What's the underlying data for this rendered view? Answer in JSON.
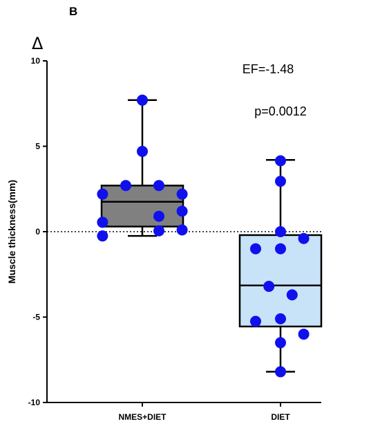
{
  "panel_label": "B",
  "delta_symbol": "Δ",
  "chart_data": {
    "type": "box",
    "ylabel": "Muscle thickness(mm)",
    "ylim": [
      -10,
      10
    ],
    "yticks": [
      10,
      5,
      0,
      -5,
      -10
    ],
    "ytick_labels": [
      "10",
      "5",
      "0",
      "-5",
      "-10"
    ],
    "zero_line": "dotted",
    "grid": false,
    "categories": [
      "NMES+DIET",
      "DIET"
    ],
    "series": [
      {
        "category": "NMES+DIET",
        "box_color": "#808080",
        "point_color": "#1010ee",
        "min": -0.25,
        "q1": 0.3,
        "median": 1.75,
        "q3": 2.7,
        "max": 7.7,
        "points": [
          {
            "offset": 0,
            "y": 7.7
          },
          {
            "offset": 0,
            "y": 4.7
          },
          {
            "offset": -0.5,
            "y": 2.7
          },
          {
            "offset": 0.5,
            "y": 2.7
          },
          {
            "offset": -1.2,
            "y": 2.2
          },
          {
            "offset": 1.2,
            "y": 2.2
          },
          {
            "offset": 1.2,
            "y": 1.2
          },
          {
            "offset": 0.5,
            "y": 0.9
          },
          {
            "offset": -1.2,
            "y": 0.55
          },
          {
            "offset": 0.5,
            "y": 0.05
          },
          {
            "offset": 1.2,
            "y": 0.1
          },
          {
            "offset": -1.2,
            "y": -0.25
          }
        ]
      },
      {
        "category": "DIET",
        "box_color": "#c8e2f8",
        "point_color": "#1010ee",
        "min": -8.2,
        "q1": -5.55,
        "median": -3.15,
        "q3": -0.2,
        "max": 4.2,
        "points": [
          {
            "offset": 0,
            "y": 4.15
          },
          {
            "offset": 0,
            "y": 2.95
          },
          {
            "offset": 0,
            "y": 0.0
          },
          {
            "offset": 0.7,
            "y": -0.4
          },
          {
            "offset": -0.75,
            "y": -1.0
          },
          {
            "offset": 0,
            "y": -1.0
          },
          {
            "offset": -0.35,
            "y": -3.2
          },
          {
            "offset": 0.35,
            "y": -3.7
          },
          {
            "offset": -0.75,
            "y": -5.25
          },
          {
            "offset": 0,
            "y": -5.1
          },
          {
            "offset": 0.7,
            "y": -6.0
          },
          {
            "offset": 0,
            "y": -6.5
          },
          {
            "offset": 0,
            "y": -8.2
          }
        ]
      }
    ],
    "annotations": [
      "EF=-1.48",
      "p=0.0012"
    ]
  }
}
